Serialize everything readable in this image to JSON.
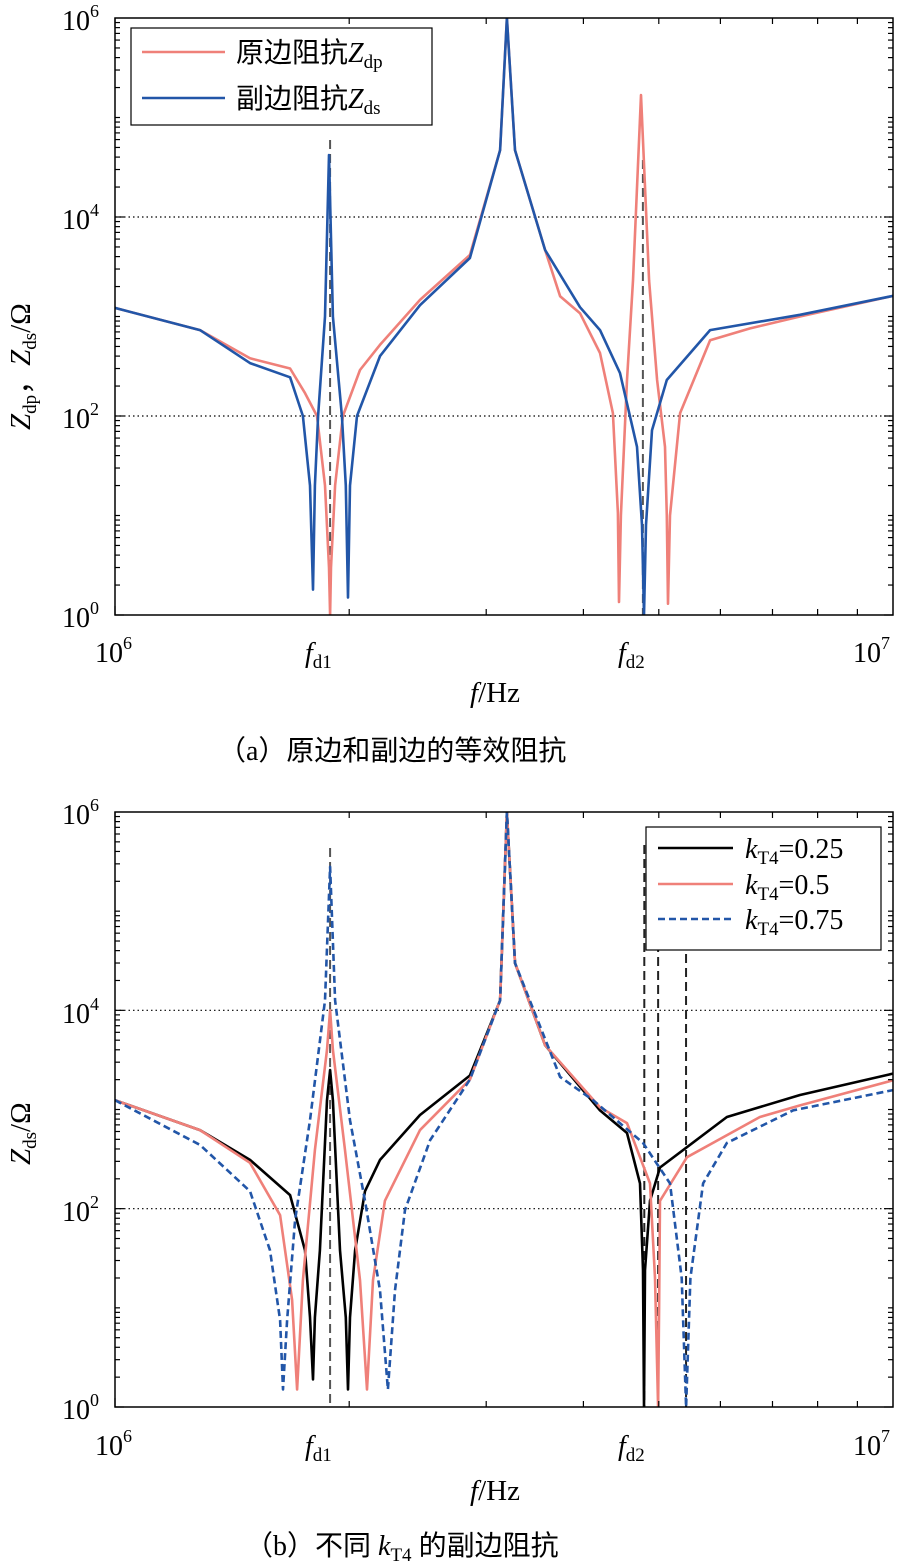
{
  "colors": {
    "primary": "#ef8079",
    "secondary": "#2256a8",
    "k025": "#000000",
    "k05": "#ef8079",
    "k075": "#2256a8",
    "marker": "#555555"
  },
  "chart_data": [
    {
      "type": "line",
      "caption": "（a）原边和副边的等效阻抗",
      "xscale": "log",
      "yscale": "log",
      "xlim": [
        1000000,
        10000000
      ],
      "ylim": [
        1,
        1000000
      ],
      "xlabel": {
        "var": "f",
        "unit": "/Hz"
      },
      "ylabel": {
        "v1": "Z",
        "s1": "dp",
        "sep": "，",
        "v2": "Z",
        "s2": "ds",
        "unit": "/Ω"
      },
      "yticks": [
        {
          "base": "10",
          "exp": "0"
        },
        {
          "base": "10",
          "exp": "2"
        },
        {
          "base": "10",
          "exp": "4"
        },
        {
          "base": "10",
          "exp": "6"
        }
      ],
      "xticks": [
        {
          "base": "10",
          "exp": "6"
        },
        {
          "var": "f",
          "sub": "d1"
        },
        {
          "var": "f",
          "sub": "d2"
        },
        {
          "base": "10",
          "exp": "7"
        }
      ],
      "grid_y": [
        100,
        10000
      ],
      "markers_f": [
        1890000,
        4770000
      ],
      "legend_position": "top-left",
      "series": [
        {
          "name": {
            "label": "原边阻抗",
            "var": "Z",
            "sub": "dp"
          },
          "color": "#ef8079",
          "dash": "solid",
          "points": [
            [
              1000000.0,
              1220
            ],
            [
              1286000.0,
              730
            ],
            [
              1491000.0,
              380
            ],
            [
              1679000.0,
              300
            ],
            [
              1755000.0,
              170
            ],
            [
              1818000.0,
              100
            ],
            [
              1862000.0,
              20
            ],
            [
              1884000.0,
              3
            ],
            [
              1890000.0,
              1
            ],
            [
              1895000.0,
              3
            ],
            [
              1918000.0,
              20
            ],
            [
              1963000.0,
              100
            ],
            [
              2065000.0,
              290
            ],
            [
              2191000.0,
              520
            ],
            [
              2466000.0,
              1470
            ],
            [
              2859000.0,
              4150
            ],
            [
              3126000.0,
              47000
            ],
            [
              3190000.0,
              1000000
            ],
            [
              3267000.0,
              47000
            ],
            [
              3571000.0,
              4660
            ],
            [
              3733000.0,
              1600
            ],
            [
              3960000.0,
              1080
            ],
            [
              4202000.0,
              430
            ],
            [
              4365000.0,
              107
            ],
            [
              4430000.0,
              10.6
            ],
            [
              4445000.0,
              1.35
            ],
            [
              4470000.0,
              10
            ],
            [
              4551000.0,
              230
            ],
            [
              4633000.0,
              2300
            ],
            [
              4744000.0,
              168000
            ],
            [
              4858000.0,
              2300
            ],
            [
              4975000.0,
              230
            ],
            [
              5092000.0,
              49
            ],
            [
              5120000.0,
              10
            ],
            [
              5138000.0,
              1.3
            ],
            [
              5169000.0,
              10
            ],
            [
              5325000.0,
              107
            ],
            [
              5820000.0,
              577
            ],
            [
              6551000.0,
              760
            ],
            [
              7594000.0,
              1000
            ],
            [
              10000000.0,
              1610
            ]
          ]
        },
        {
          "name": {
            "label": "副边阻抗",
            "var": "Z",
            "sub": "ds"
          },
          "color": "#2256a8",
          "dash": "solid",
          "points": [
            [
              1000000.0,
              1220
            ],
            [
              1286000.0,
              730
            ],
            [
              1491000.0,
              340
            ],
            [
              1679000.0,
              245
            ],
            [
              1744000.0,
              100
            ],
            [
              1781000.0,
              20
            ],
            [
              1797000.0,
              1.8
            ],
            [
              1807000.0,
              20
            ],
            [
              1824000.0,
              100
            ],
            [
              1862000.0,
              1000
            ],
            [
              1884000.0,
              42000
            ],
            [
              1906000.0,
              1000
            ],
            [
              1957000.0,
              100
            ],
            [
              1980000.0,
              20
            ],
            [
              1993000.0,
              1.5
            ],
            [
              2005000.0,
              20
            ],
            [
              2047000.0,
              100
            ],
            [
              2191000.0,
              400
            ],
            [
              2466000.0,
              1300
            ],
            [
              2859000.0,
              3870
            ],
            [
              3126000.0,
              47000
            ],
            [
              3190000.0,
              1000000
            ],
            [
              3267000.0,
              47000
            ],
            [
              3571000.0,
              4660
            ],
            [
              3960000.0,
              1240
            ],
            [
              4202000.0,
              730
            ],
            [
              4458000.0,
              270
            ],
            [
              4688000.0,
              49
            ],
            [
              4758000.0,
              8
            ],
            [
              4786000.0,
              1
            ],
            [
              4814000.0,
              8
            ],
            [
              4901000.0,
              72
            ],
            [
              5120000.0,
              230
            ],
            [
              5820000.0,
              730
            ],
            [
              7594000.0,
              1040
            ],
            [
              10000000.0,
              1610
            ]
          ]
        }
      ]
    },
    {
      "type": "line",
      "caption": {
        "pre": "（b）不同 ",
        "var": "k",
        "sub": "T4",
        "post": " 的副边阻抗"
      },
      "xscale": "log",
      "yscale": "log",
      "xlim": [
        1000000,
        10000000
      ],
      "ylim": [
        1,
        1000000
      ],
      "xlabel": {
        "var": "f",
        "unit": "/Hz"
      },
      "ylabel": {
        "v1": "Z",
        "s1": "ds",
        "unit": "/Ω"
      },
      "yticks": [
        {
          "base": "10",
          "exp": "0"
        },
        {
          "base": "10",
          "exp": "2"
        },
        {
          "base": "10",
          "exp": "4"
        },
        {
          "base": "10",
          "exp": "6"
        }
      ],
      "xticks": [
        {
          "base": "10",
          "exp": "6"
        },
        {
          "var": "f",
          "sub": "d1"
        },
        {
          "var": "f",
          "sub": "d2"
        },
        {
          "base": "10",
          "exp": "7"
        }
      ],
      "grid_y": [
        100,
        10000
      ],
      "markers_f": [
        1890000,
        4790000,
        4990000,
        5420000
      ],
      "legend_position": "top-right",
      "series": [
        {
          "name": {
            "var": "k",
            "sub": "T4",
            "value": "=0.25"
          },
          "color": "#000000",
          "dash": "solid",
          "points": [
            [
              1000000.0,
              1240
            ],
            [
              1286000.0,
              620
            ],
            [
              1491000.0,
              310
            ],
            [
              1679000.0,
              137
            ],
            [
              1755000.0,
              38
            ],
            [
              1781000.0,
              8
            ],
            [
              1797000.0,
              1.9
            ],
            [
              1807000.0,
              8
            ],
            [
              1834000.0,
              38
            ],
            [
              1873000.0,
              1240
            ],
            [
              1890000.0,
              2500
            ],
            [
              1906000.0,
              1240
            ],
            [
              1946000.0,
              38
            ],
            [
              1980000.0,
              8
            ],
            [
              1993000.0,
              1.5
            ],
            [
              2005000.0,
              8
            ],
            [
              2035000.0,
              38
            ],
            [
              2096000.0,
              150
            ],
            [
              2191000.0,
              310
            ],
            [
              2466000.0,
              880
            ],
            [
              2859000.0,
              2200
            ],
            [
              3126000.0,
              12600
            ],
            [
              3190000.0,
              1000000
            ],
            [
              3267000.0,
              30000
            ],
            [
              3571000.0,
              4450
            ],
            [
              4202000.0,
              980
            ],
            [
              4551000.0,
              580
            ],
            [
              4730000.0,
              180
            ],
            [
              4772000.0,
              24
            ],
            [
              4786000.0,
              1
            ],
            [
              4800000.0,
              24
            ],
            [
              4872000.0,
              120
            ],
            [
              5018000.0,
              260
            ],
            [
              6117000.0,
              840
            ],
            [
              7594000.0,
              1400
            ],
            [
              10000000.0,
              2300
            ]
          ]
        },
        {
          "name": {
            "var": "k",
            "sub": "T4",
            "value": "=0.5"
          },
          "color": "#ef8079",
          "dash": "solid",
          "points": [
            [
              1000000.0,
              1240
            ],
            [
              1286000.0,
              620
            ],
            [
              1491000.0,
              290
            ],
            [
              1630000.0,
              86
            ],
            [
              1689000.0,
              12
            ],
            [
              1714000.0,
              1.5
            ],
            [
              1744000.0,
              19
            ],
            [
              1807000.0,
              390
            ],
            [
              1873000.0,
              4000
            ],
            [
              1890000.0,
              10000
            ],
            [
              1906000.0,
              4000
            ],
            [
              1975000.0,
              390
            ],
            [
              2065000.0,
              19
            ],
            [
              2108000.0,
              1.5
            ],
            [
              2146000.0,
              19
            ],
            [
              2223000.0,
              120
            ],
            [
              2466000.0,
              620
            ],
            [
              2859000.0,
              2000
            ],
            [
              3126000.0,
              12600
            ],
            [
              3190000.0,
              1000000
            ],
            [
              3267000.0,
              30000
            ],
            [
              3571000.0,
              4450
            ],
            [
              4202000.0,
              1050
            ],
            [
              4551000.0,
              730
            ],
            [
              4872000.0,
              180
            ],
            [
              4944000.0,
              20
            ],
            [
              4989000.0,
              1
            ],
            [
              5004000.0,
              10
            ],
            [
              5018000.0,
              120
            ],
            [
              5436000.0,
              330
            ],
            [
              6745000.0,
              840
            ],
            [
              7594000.0,
              1100
            ],
            [
              10000000.0,
              1970
            ]
          ]
        },
        {
          "name": {
            "var": "k",
            "sub": "T4",
            "value": "=0.75"
          },
          "color": "#2256a8",
          "dash": "dashed",
          "points": [
            [
              1000000.0,
              1240
            ],
            [
              1286000.0,
              440
            ],
            [
              1491000.0,
              150
            ],
            [
              1582000.0,
              38
            ],
            [
              1630000.0,
              7.5
            ],
            [
              1644000.0,
              1.5
            ],
            [
              1664000.0,
              7.5
            ],
            [
              1704000.0,
              77
            ],
            [
              1781000.0,
              780
            ],
            [
              1862000.0,
              12600
            ],
            [
              1890000.0,
              280000
            ],
            [
              1918000.0,
              12600
            ],
            [
              2005000.0,
              780
            ],
            [
              2096000.0,
              120
            ],
            [
              2191000.0,
              15
            ],
            [
              2243000.0,
              1.5
            ],
            [
              2290000.0,
              15
            ],
            [
              2359000.0,
              97
            ],
            [
              2541000.0,
              490
            ],
            [
              2859000.0,
              2000
            ],
            [
              3126000.0,
              12600
            ],
            [
              3190000.0,
              1000000
            ],
            [
              3267000.0,
              30000
            ],
            [
              3733000.0,
              2130
            ],
            [
              4116000.0,
              1240
            ],
            [
              4772000.0,
              460
            ],
            [
              5169000.0,
              180
            ],
            [
              5350000.0,
              20
            ],
            [
              5420000.0,
              1
            ],
            [
              5490000.0,
              20
            ],
            [
              5700000.0,
              180
            ],
            [
              6117000.0,
              460
            ],
            [
              7438000.0,
              980
            ],
            [
              10000000.0,
              1570
            ]
          ]
        }
      ]
    }
  ]
}
